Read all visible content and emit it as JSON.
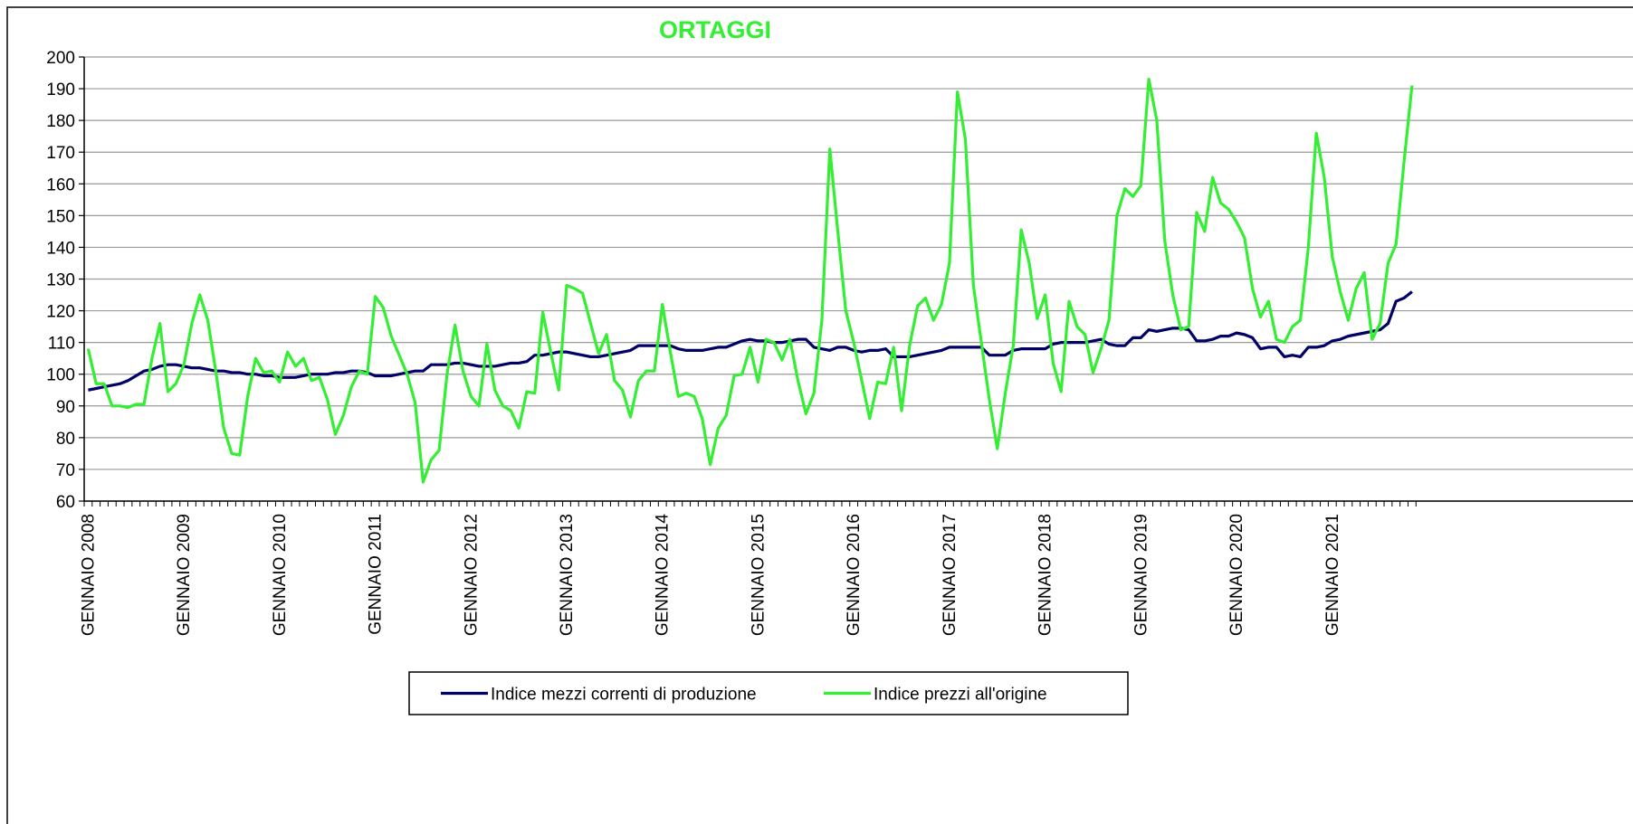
{
  "chart_data": {
    "type": "line",
    "title": "ORTAGGI",
    "title_color": "#33ee33",
    "categories": [
      "GENNAIO 2008",
      null,
      null,
      null,
      null,
      null,
      null,
      null,
      null,
      null,
      null,
      null,
      "GENNAIO 2009",
      null,
      null,
      null,
      null,
      null,
      null,
      null,
      null,
      null,
      null,
      null,
      "GENNAIO 2010",
      null,
      null,
      null,
      null,
      null,
      null,
      null,
      null,
      null,
      null,
      null,
      "GENNAIO 2011",
      null,
      null,
      null,
      null,
      null,
      null,
      null,
      null,
      null,
      null,
      null,
      "GENNAIO 2012",
      null,
      null,
      null,
      null,
      null,
      null,
      null,
      null,
      null,
      null,
      null,
      "GENNAIO 2013",
      null,
      null,
      null,
      null,
      null,
      null,
      null,
      null,
      null,
      null,
      null,
      "GENNAIO 2014",
      null,
      null,
      null,
      null,
      null,
      null,
      null,
      null,
      null,
      null,
      null,
      "GENNAIO 2015",
      null,
      null,
      null,
      null,
      null,
      null,
      null,
      null,
      null,
      null,
      null,
      "GENNAIO 2016",
      null,
      null,
      null,
      null,
      null,
      null,
      null,
      null,
      null,
      null,
      null,
      "GENNAIO 2017",
      null,
      null,
      null,
      null,
      null,
      null,
      null,
      null,
      null,
      null,
      null,
      "GENNAIO 2018",
      null,
      null,
      null,
      null,
      null,
      null,
      null,
      null,
      null,
      null,
      null,
      "GENNAIO 2019",
      null,
      null,
      null,
      null,
      null,
      null,
      null,
      null,
      null,
      null,
      null,
      "GENNAIO 2020",
      null,
      null,
      null,
      null,
      null,
      null,
      null,
      null,
      null,
      null,
      null,
      "GENNAIO 2021",
      null,
      null,
      null,
      null,
      null,
      null,
      null,
      null,
      null,
      null
    ],
    "series": [
      {
        "name": "Indice mezzi correnti di produzione",
        "color": "#000066",
        "values": [
          95,
          95.5,
          96,
          96.5,
          97,
          98,
          99.5,
          101,
          101.5,
          102.5,
          103,
          103,
          102.5,
          102,
          102,
          101.5,
          101,
          101,
          100.5,
          100.5,
          100,
          100,
          99.5,
          99.5,
          99,
          99,
          99,
          99.5,
          100,
          100,
          100,
          100.5,
          100.5,
          101,
          101,
          100.5,
          99.5,
          99.5,
          99.5,
          100,
          100.5,
          101,
          101,
          103,
          103,
          103,
          103.5,
          103.5,
          103,
          102.5,
          102.5,
          102.5,
          103,
          103.5,
          103.5,
          104,
          106,
          106,
          106.5,
          107,
          107,
          106.5,
          106,
          105.5,
          105.5,
          106,
          106.5,
          107,
          107.5,
          109,
          109,
          109,
          109,
          109,
          108,
          107.5,
          107.5,
          107.5,
          108,
          108.5,
          108.5,
          109.5,
          110.5,
          111,
          110.5,
          110.5,
          110,
          110,
          110.5,
          111,
          111,
          108.5,
          108,
          107.5,
          108.5,
          108.5,
          107.5,
          107,
          107.5,
          107.5,
          108,
          105.5,
          105.5,
          105.5,
          106,
          106.5,
          107,
          107.5,
          108.5,
          108.5,
          108.5,
          108.5,
          108.5,
          106,
          106,
          106,
          107.5,
          108,
          108,
          108,
          108,
          109.5,
          110,
          110,
          110,
          110,
          110.5,
          111,
          109.5,
          109,
          109,
          111.5,
          111.5,
          114,
          113.5,
          114,
          114.5,
          114.5,
          114,
          110.5,
          110.5,
          111,
          112,
          112,
          113,
          112.5,
          111.5,
          108,
          108.5,
          108.5,
          105.5,
          106,
          105.5,
          108.5,
          108.5,
          109,
          110.5,
          111,
          112,
          112.5,
          113,
          113.5,
          114,
          116,
          123,
          124,
          126
        ]
      },
      {
        "name": "Indice prezzi all'origine",
        "color": "#33ee33",
        "values": [
          108,
          97,
          97,
          90,
          90,
          89.5,
          90.5,
          90.5,
          105,
          116,
          94.5,
          97,
          103,
          116,
          125,
          117,
          101,
          83,
          75,
          74.5,
          93,
          105,
          100.5,
          101,
          97.5,
          107,
          102.5,
          105,
          98,
          99,
          92,
          81,
          87,
          96,
          101,
          100,
          124.5,
          121,
          112,
          106,
          100,
          91,
          66,
          73,
          76,
          100,
          115.5,
          101,
          93,
          90,
          109.5,
          95,
          90,
          88.5,
          83,
          94.5,
          94,
          119.5,
          107,
          95,
          128,
          127,
          125.5,
          116,
          106.5,
          112.5,
          98,
          95,
          86.5,
          98,
          101,
          101,
          122,
          107,
          93,
          94,
          93,
          86,
          71.5,
          83,
          87,
          99.5,
          100,
          108.5,
          97.5,
          111,
          110,
          104.5,
          111,
          98,
          87.5,
          94,
          117,
          171,
          145,
          120,
          110,
          98,
          86,
          97.5,
          97,
          108.5,
          88.5,
          109,
          121.5,
          124,
          117,
          122,
          135,
          189,
          174,
          128,
          110,
          92,
          76.5,
          94,
          109,
          145.5,
          135,
          117.5,
          125,
          103.5,
          94.5,
          123,
          115,
          112.5,
          100.5,
          108,
          117,
          150,
          158.5,
          156,
          159.5,
          193,
          180,
          142,
          125,
          114,
          115,
          151,
          145,
          162,
          154,
          152,
          148,
          143,
          127,
          118,
          123,
          111,
          110,
          115,
          117,
          140,
          176,
          162,
          137,
          126,
          117,
          127,
          132,
          111,
          116,
          135,
          141,
          167,
          191
        ]
      }
    ],
    "ylim": [
      60,
      200
    ],
    "yticks": [
      60,
      70,
      80,
      90,
      100,
      110,
      120,
      130,
      140,
      150,
      160,
      170,
      180,
      190,
      200
    ],
    "grid": true,
    "legend": "bottom"
  }
}
